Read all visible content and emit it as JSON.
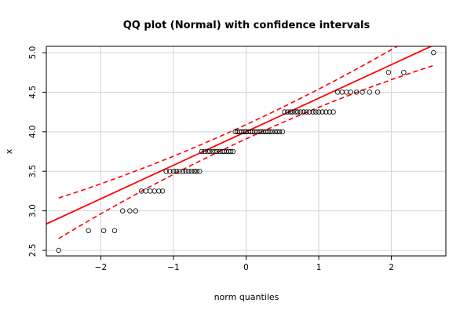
{
  "chart_data": {
    "type": "scatter",
    "title": "QQ plot (Normal) with confidence intervals",
    "xlabel": "norm quantiles",
    "ylabel": "x",
    "xlim": [
      -2.75,
      2.75
    ],
    "ylim": [
      2.43,
      5.08
    ],
    "x_ticks": [
      -2,
      -1,
      0,
      1,
      2
    ],
    "y_ticks": [
      2.5,
      3.0,
      3.5,
      4.0,
      4.5,
      5.0
    ],
    "x_tick_labels": [
      "−2",
      "−1",
      "0",
      "1",
      "2"
    ],
    "y_tick_labels": [
      "2.5",
      "3.0",
      "3.5",
      "4.0",
      "4.5",
      "5.0"
    ],
    "grid": true,
    "points_color": "#000000",
    "line_color": "#ff0000",
    "levels": [
      {
        "y": 2.5,
        "x": [
          -2.58
        ]
      },
      {
        "y": 2.75,
        "x": [
          -2.17,
          -1.96,
          -1.81
        ]
      },
      {
        "y": 3.0,
        "x": [
          -1.7,
          -1.6,
          -1.52
        ]
      },
      {
        "y": 3.25,
        "x": [
          -1.44,
          -1.38,
          -1.32,
          -1.26,
          -1.2,
          -1.15
        ]
      },
      {
        "y": 3.5,
        "x": [
          -1.1,
          -1.05,
          -1.0,
          -0.96,
          -0.92,
          -0.87,
          -0.83,
          -0.79,
          -0.75,
          -0.71,
          -0.68,
          -0.64
        ]
      },
      {
        "y": 3.75,
        "x": [
          -0.61,
          -0.57,
          -0.53,
          -0.5,
          -0.46,
          -0.43,
          -0.4,
          -0.36,
          -0.33,
          -0.3,
          -0.27,
          -0.24,
          -0.21,
          -0.18
        ]
      },
      {
        "y": 4.0,
        "x": [
          -0.15,
          -0.12,
          -0.09,
          -0.06,
          -0.03,
          0.0,
          0.03,
          0.06,
          0.09,
          0.12,
          0.15,
          0.18,
          0.21,
          0.24,
          0.27,
          0.3,
          0.33,
          0.36,
          0.4,
          0.43,
          0.46,
          0.5
        ]
      },
      {
        "y": 4.25,
        "x": [
          0.53,
          0.57,
          0.61,
          0.64,
          0.68,
          0.71,
          0.75,
          0.79,
          0.83,
          0.87,
          0.92,
          0.96,
          1.0,
          1.05,
          1.1,
          1.15,
          1.2
        ]
      },
      {
        "y": 4.5,
        "x": [
          1.26,
          1.32,
          1.38,
          1.44,
          1.52,
          1.6,
          1.7,
          1.81
        ]
      },
      {
        "y": 4.75,
        "x": [
          1.96,
          2.17
        ]
      },
      {
        "y": 5.0,
        "x": [
          2.58
        ]
      }
    ],
    "fit_line": {
      "intercept": 4.0,
      "slope": 0.424
    },
    "ci_band": {
      "halfwidth_base": 0.05,
      "halfwidth_scale": 0.35,
      "x_range": [
        -2.58,
        2.58
      ]
    }
  }
}
